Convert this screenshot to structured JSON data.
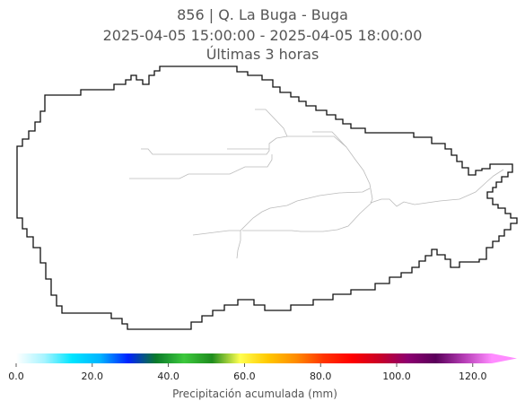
{
  "header": {
    "line1": "856 | Q. La Buga - Buga",
    "line2": "2025-04-05 15:00:00 - 2025-04-05 18:00:00",
    "line3": "Últimas 3 horas"
  },
  "colorbar": {
    "label": "Precipitación acumulada (mm)",
    "ticks": [
      "0.0",
      "20.0",
      "40.0",
      "60.0",
      "80.0",
      "100.0",
      "120.0"
    ],
    "min": 0,
    "max": 125,
    "colors": [
      "#ffffff",
      "#a8f4ff",
      "#00e5ff",
      "#00b4ff",
      "#0022ff",
      "#0a7a2a",
      "#3cc83c",
      "#1e8c1e",
      "#ffff50",
      "#ffc800",
      "#ff8c00",
      "#ff3300",
      "#ff0000",
      "#c80028",
      "#8c0070",
      "#5a005a",
      "#b43cb4",
      "#ff8cff"
    ]
  },
  "map": {
    "basin_outline_color": "#111111",
    "river_color": "#bbbbbb"
  }
}
